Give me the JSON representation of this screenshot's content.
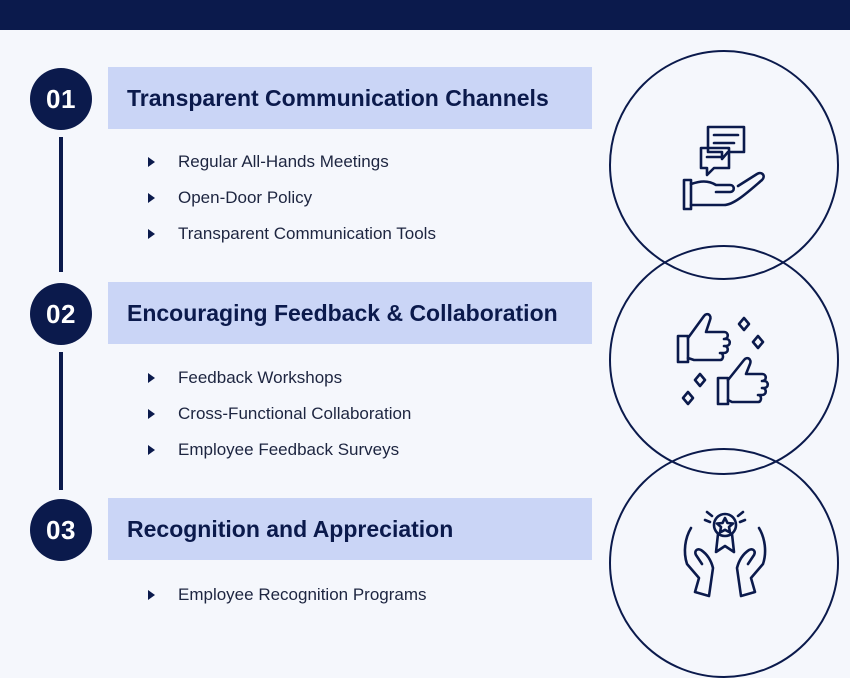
{
  "sections": [
    {
      "number": "01",
      "title": "Transparent Communication Channels",
      "items": [
        "Regular All-Hands Meetings",
        "Open-Door Policy",
        "Transparent Communication Tools"
      ],
      "icon": "chat-hand-icon"
    },
    {
      "number": "02",
      "title": "Encouraging Feedback & Collaboration",
      "items": [
        "Feedback Workshops",
        "Cross-Functional Collaboration",
        "Employee Feedback Surveys"
      ],
      "icon": "thumbs-up-icon"
    },
    {
      "number": "03",
      "title": "Recognition and Appreciation",
      "items": [
        "Employee Recognition Programs"
      ],
      "icon": "award-hands-icon"
    }
  ],
  "colors": {
    "navy": "#0b1a4c",
    "band": "#cad5f6",
    "background": "#f5f7fc"
  }
}
